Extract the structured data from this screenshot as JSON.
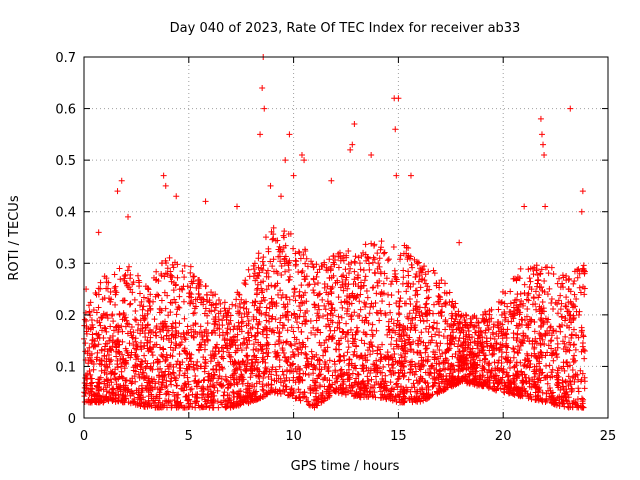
{
  "chart_data": {
    "type": "scatter",
    "title": "Day 040 of 2023, Rate Of TEC Index for receiver ab33",
    "xlabel": "GPS time / hours",
    "ylabel": "ROTI / TECUs",
    "xlim": [
      0,
      25
    ],
    "ylim": [
      0,
      0.7
    ],
    "xticks": [
      0,
      5,
      10,
      15,
      20,
      25
    ],
    "yticks": [
      0,
      0.1,
      0.2,
      0.3,
      0.4,
      0.5,
      0.6,
      0.7
    ],
    "x_tick_labels": [
      "0",
      "5",
      "10",
      "15",
      "20",
      "25"
    ],
    "y_tick_labels": [
      "0",
      "0.1",
      "0.2",
      "0.3",
      "0.4",
      "0.5",
      "0.6",
      "0.7"
    ],
    "grid": true,
    "marker": "+",
    "series": [
      {
        "name": "ROTI",
        "color": "#ff0000",
        "x_range_hours": [
          0,
          23.9
        ],
        "profile_hours": [
          0,
          1,
          2,
          3,
          4,
          5,
          6,
          7,
          8,
          9,
          10,
          11,
          12,
          13,
          14,
          15,
          16,
          17,
          18,
          19,
          20,
          21,
          22,
          23,
          23.9
        ],
        "typical_max": [
          0.2,
          0.28,
          0.3,
          0.26,
          0.32,
          0.3,
          0.25,
          0.22,
          0.3,
          0.38,
          0.36,
          0.3,
          0.32,
          0.33,
          0.35,
          0.36,
          0.3,
          0.28,
          0.2,
          0.2,
          0.25,
          0.3,
          0.3,
          0.28,
          0.3
        ],
        "typical_min": [
          0.03,
          0.03,
          0.03,
          0.02,
          0.02,
          0.02,
          0.02,
          0.02,
          0.03,
          0.05,
          0.04,
          0.02,
          0.05,
          0.04,
          0.04,
          0.03,
          0.03,
          0.05,
          0.07,
          0.06,
          0.05,
          0.04,
          0.03,
          0.02,
          0.02
        ],
        "outliers": [
          [
            0.1,
            0.25
          ],
          [
            0.7,
            0.36
          ],
          [
            1.6,
            0.44
          ],
          [
            1.8,
            0.46
          ],
          [
            2.1,
            0.39
          ],
          [
            3.8,
            0.47
          ],
          [
            3.9,
            0.45
          ],
          [
            4.4,
            0.43
          ],
          [
            5.8,
            0.42
          ],
          [
            7.3,
            0.41
          ],
          [
            8.4,
            0.55
          ],
          [
            8.5,
            0.64
          ],
          [
            8.55,
            0.7
          ],
          [
            8.6,
            0.6
          ],
          [
            8.9,
            0.45
          ],
          [
            9.4,
            0.43
          ],
          [
            9.6,
            0.5
          ],
          [
            9.8,
            0.55
          ],
          [
            10.0,
            0.47
          ],
          [
            10.4,
            0.51
          ],
          [
            10.5,
            0.5
          ],
          [
            11.8,
            0.46
          ],
          [
            12.7,
            0.52
          ],
          [
            12.8,
            0.53
          ],
          [
            12.9,
            0.57
          ],
          [
            13.7,
            0.51
          ],
          [
            14.8,
            0.62
          ],
          [
            14.85,
            0.56
          ],
          [
            15.0,
            0.62
          ],
          [
            14.9,
            0.47
          ],
          [
            15.6,
            0.47
          ],
          [
            17.9,
            0.34
          ],
          [
            21.0,
            0.41
          ],
          [
            21.8,
            0.58
          ],
          [
            21.85,
            0.55
          ],
          [
            21.9,
            0.53
          ],
          [
            21.95,
            0.51
          ],
          [
            22.0,
            0.41
          ],
          [
            23.2,
            0.6
          ],
          [
            23.8,
            0.44
          ],
          [
            23.75,
            0.4
          ]
        ]
      }
    ]
  }
}
